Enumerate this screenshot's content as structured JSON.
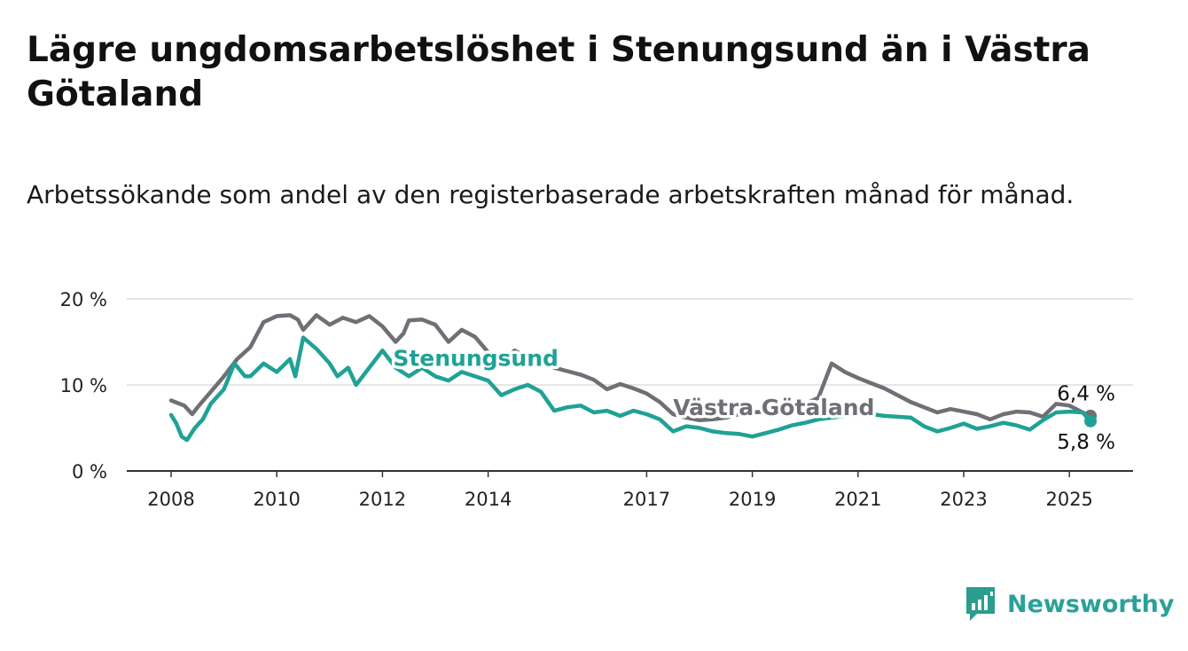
{
  "title": "Lägre ungdomsarbetslöshet i Stenungsund än i Västra Götaland",
  "subtitle": "Arbetssökande som andel av den registerbaserade arbetskraften månad för månad.",
  "brand": {
    "name": "Newsworthy",
    "color": "#2a9d8f",
    "icon": "bar-chart-speech-bubble-icon"
  },
  "chart_data": {
    "type": "line",
    "ylim": [
      0,
      20
    ],
    "y_ticks": [
      "0 %",
      "10 %",
      "20 %"
    ],
    "y_tick_values": [
      0,
      10,
      20
    ],
    "x_ticks": [
      "2008",
      "2010",
      "2012",
      "2014",
      "2017",
      "2019",
      "2021",
      "2023",
      "2025"
    ],
    "x_tick_values": [
      2008,
      2010,
      2012,
      2014,
      2017,
      2019,
      2021,
      2023,
      2025
    ],
    "xlim": [
      2007.2,
      2026.2
    ],
    "grid": true,
    "end_labels": {
      "vastra_gotaland": "6,4 %",
      "stenungsund": "5,8 %"
    },
    "series": [
      {
        "name": "Västra Götaland",
        "color": "#6f6f76",
        "x": [
          2008.0,
          2008.25,
          2008.4,
          2008.5,
          2008.75,
          2009.0,
          2009.25,
          2009.5,
          2009.75,
          2010.0,
          2010.25,
          2010.4,
          2010.5,
          2010.75,
          2011.0,
          2011.25,
          2011.5,
          2011.75,
          2012.0,
          2012.25,
          2012.4,
          2012.5,
          2012.75,
          2013.0,
          2013.25,
          2013.5,
          2013.75,
          2014.0,
          2014.25,
          2014.5,
          2014.75,
          2015.0,
          2015.25,
          2015.5,
          2015.75,
          2016.0,
          2016.25,
          2016.5,
          2016.75,
          2017.0,
          2017.25,
          2017.5,
          2017.75,
          2018.0,
          2018.25,
          2018.5,
          2018.75,
          2019.0,
          2019.25,
          2019.5,
          2019.75,
          2020.0,
          2020.25,
          2020.5,
          2020.75,
          2021.0,
          2021.25,
          2021.5,
          2021.75,
          2022.0,
          2022.25,
          2022.5,
          2022.75,
          2023.0,
          2023.25,
          2023.5,
          2023.75,
          2024.0,
          2024.25,
          2024.5,
          2024.75,
          2025.0,
          2025.25,
          2025.4
        ],
        "values": [
          8.2,
          7.6,
          6.6,
          7.4,
          9.2,
          11.0,
          13.0,
          14.4,
          17.3,
          18.0,
          18.1,
          17.6,
          16.4,
          18.1,
          17.0,
          17.8,
          17.3,
          18.0,
          16.8,
          15.0,
          16.0,
          17.5,
          17.6,
          17.0,
          15.0,
          16.4,
          15.6,
          13.8,
          12.5,
          14.0,
          13.2,
          12.8,
          12.0,
          11.6,
          11.2,
          10.6,
          9.5,
          10.1,
          9.6,
          9.0,
          8.0,
          6.6,
          6.2,
          5.9,
          6.0,
          6.2,
          6.6,
          6.8,
          6.9,
          7.0,
          7.2,
          7.8,
          8.5,
          12.5,
          11.5,
          10.8,
          10.2,
          9.6,
          8.8,
          8.0,
          7.4,
          6.8,
          7.2,
          6.9,
          6.6,
          6.0,
          6.6,
          6.9,
          6.8,
          6.3,
          7.8,
          7.6,
          6.8,
          6.4
        ]
      },
      {
        "name": "Stenungsund",
        "color": "#1fa295",
        "x": [
          2008.0,
          2008.1,
          2008.2,
          2008.3,
          2008.45,
          2008.6,
          2008.75,
          2009.0,
          2009.2,
          2009.4,
          2009.5,
          2009.75,
          2010.0,
          2010.25,
          2010.35,
          2010.5,
          2010.75,
          2011.0,
          2011.15,
          2011.35,
          2011.5,
          2011.75,
          2012.0,
          2012.25,
          2012.5,
          2012.75,
          2013.0,
          2013.25,
          2013.5,
          2013.75,
          2014.0,
          2014.25,
          2014.5,
          2014.75,
          2015.0,
          2015.25,
          2015.5,
          2015.75,
          2016.0,
          2016.25,
          2016.5,
          2016.75,
          2017.0,
          2017.25,
          2017.5,
          2017.75,
          2018.0,
          2018.25,
          2018.5,
          2018.75,
          2019.0,
          2019.25,
          2019.5,
          2019.75,
          2020.0,
          2020.25,
          2020.5,
          2020.75,
          2021.0,
          2021.25,
          2021.5,
          2021.75,
          2022.0,
          2022.25,
          2022.5,
          2022.75,
          2023.0,
          2023.25,
          2023.5,
          2023.75,
          2024.0,
          2024.25,
          2024.5,
          2024.75,
          2025.0,
          2025.25,
          2025.4
        ],
        "values": [
          6.5,
          5.5,
          4.0,
          3.6,
          5.0,
          6.0,
          7.8,
          9.5,
          12.5,
          11.0,
          11.0,
          12.5,
          11.5,
          13.0,
          11.0,
          15.5,
          14.2,
          12.5,
          11.0,
          12.0,
          10.0,
          12.0,
          14.0,
          12.0,
          11.0,
          12.0,
          11.0,
          10.5,
          11.5,
          11.0,
          10.5,
          8.8,
          9.5,
          10.0,
          9.2,
          7.0,
          7.4,
          7.6,
          6.8,
          7.0,
          6.4,
          7.0,
          6.6,
          6.0,
          4.6,
          5.2,
          5.0,
          4.6,
          4.4,
          4.3,
          4.0,
          4.4,
          4.8,
          5.3,
          5.6,
          6.0,
          6.2,
          6.4,
          6.5,
          6.6,
          6.4,
          6.3,
          6.2,
          5.2,
          4.6,
          5.0,
          5.5,
          4.9,
          5.2,
          5.6,
          5.3,
          4.8,
          5.9,
          6.8,
          6.9,
          6.8,
          5.8
        ]
      }
    ]
  }
}
